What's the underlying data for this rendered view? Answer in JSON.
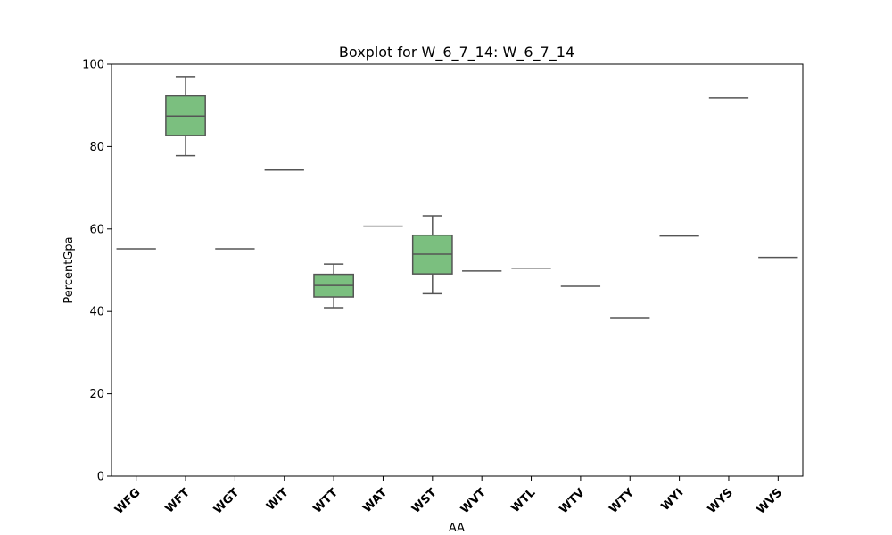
{
  "chart_data": {
    "type": "box",
    "title": "Boxplot for W_6_7_14: W_6_7_14",
    "xlabel": "AA",
    "ylabel": "PercentGpa",
    "ylim": [
      0,
      100
    ],
    "yticks": [
      0,
      20,
      40,
      60,
      80,
      100
    ],
    "grid": false,
    "colors": {
      "box_fill": "#7bbf7f",
      "line": "#555555",
      "axis": "#000000"
    },
    "categories": [
      "WFG",
      "WFT",
      "WGT",
      "WIT",
      "WTT",
      "WAT",
      "WST",
      "WVT",
      "WTL",
      "WTV",
      "WTY",
      "WYI",
      "WYS",
      "WVS"
    ],
    "boxes": [
      {
        "category": "WFG",
        "whisker_low": 55.2,
        "q1": 55.2,
        "median": 55.2,
        "q3": 55.2,
        "whisker_high": 55.2
      },
      {
        "category": "WFT",
        "whisker_low": 77.8,
        "q1": 82.7,
        "median": 87.4,
        "q3": 92.3,
        "whisker_high": 97.0
      },
      {
        "category": "WGT",
        "whisker_low": 55.2,
        "q1": 55.2,
        "median": 55.2,
        "q3": 55.2,
        "whisker_high": 55.2
      },
      {
        "category": "WIT",
        "whisker_low": 74.3,
        "q1": 74.3,
        "median": 74.3,
        "q3": 74.3,
        "whisker_high": 74.3
      },
      {
        "category": "WTT",
        "whisker_low": 40.9,
        "q1": 43.5,
        "median": 46.3,
        "q3": 49.0,
        "whisker_high": 51.5
      },
      {
        "category": "WAT",
        "whisker_low": 60.7,
        "q1": 60.7,
        "median": 60.7,
        "q3": 60.7,
        "whisker_high": 60.7
      },
      {
        "category": "WST",
        "whisker_low": 44.3,
        "q1": 49.1,
        "median": 53.9,
        "q3": 58.5,
        "whisker_high": 63.2
      },
      {
        "category": "WVT",
        "whisker_low": 49.8,
        "q1": 49.8,
        "median": 49.8,
        "q3": 49.8,
        "whisker_high": 49.8
      },
      {
        "category": "WTL",
        "whisker_low": 50.5,
        "q1": 50.5,
        "median": 50.5,
        "q3": 50.5,
        "whisker_high": 50.5
      },
      {
        "category": "WTV",
        "whisker_low": 46.1,
        "q1": 46.1,
        "median": 46.1,
        "q3": 46.1,
        "whisker_high": 46.1
      },
      {
        "category": "WTY",
        "whisker_low": 38.3,
        "q1": 38.3,
        "median": 38.3,
        "q3": 38.3,
        "whisker_high": 38.3
      },
      {
        "category": "WYI",
        "whisker_low": 58.3,
        "q1": 58.3,
        "median": 58.3,
        "q3": 58.3,
        "whisker_high": 58.3
      },
      {
        "category": "WYS",
        "whisker_low": 91.8,
        "q1": 91.8,
        "median": 91.8,
        "q3": 91.8,
        "whisker_high": 91.8
      },
      {
        "category": "WVS",
        "whisker_low": 53.1,
        "q1": 53.1,
        "median": 53.1,
        "q3": 53.1,
        "whisker_high": 53.1
      }
    ]
  }
}
